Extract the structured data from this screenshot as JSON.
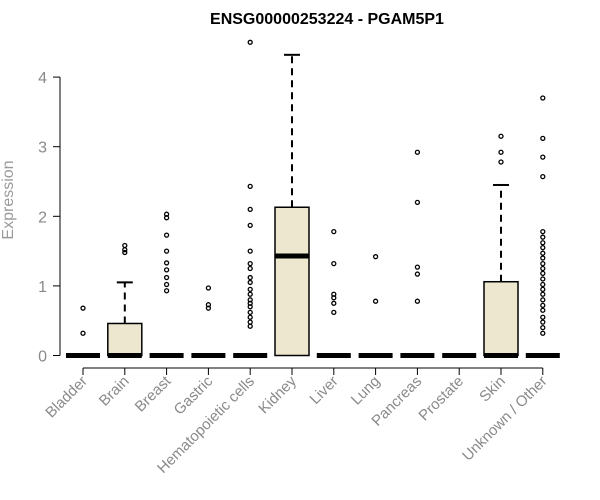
{
  "chart_data": {
    "type": "box",
    "title": "ENSG00000253224 - PGAM5P1",
    "ylabel": "Expression",
    "xlabel": "",
    "ylim": [
      0,
      4.4
    ],
    "yticks": [
      0,
      1,
      2,
      3,
      4
    ],
    "box_fill": "#ede7cf",
    "categories": [
      "Bladder",
      "Brain",
      "Breast",
      "Gastric",
      "Hematopoietic cells",
      "Kidney",
      "Liver",
      "Lung",
      "Pancreas",
      "Prostate",
      "Skin",
      "Unknown / Other"
    ],
    "boxes": [
      {
        "category": "Bladder",
        "q1": 0,
        "median": 0,
        "q3": 0,
        "whisker_low": 0,
        "whisker_high": 0,
        "outliers": [
          0.68,
          0.32
        ]
      },
      {
        "category": "Brain",
        "q1": 0,
        "median": 0,
        "q3": 0.46,
        "whisker_low": 0,
        "whisker_high": 1.05,
        "outliers": [
          1.48,
          1.52,
          1.58
        ]
      },
      {
        "category": "Breast",
        "q1": 0,
        "median": 0,
        "q3": 0,
        "whisker_low": 0,
        "whisker_high": 0,
        "outliers": [
          2.03,
          1.98,
          1.73,
          1.5,
          1.33,
          1.23,
          1.12,
          1.02,
          0.93
        ]
      },
      {
        "category": "Gastric",
        "q1": 0,
        "median": 0,
        "q3": 0,
        "whisker_low": 0,
        "whisker_high": 0,
        "outliers": [
          0.97,
          0.73,
          0.68
        ]
      },
      {
        "category": "Hematopoietic cells",
        "q1": 0,
        "median": 0,
        "q3": 0,
        "whisker_low": 0,
        "whisker_high": 0,
        "outliers": [
          4.5,
          2.43,
          2.1,
          1.87,
          1.5,
          1.32,
          1.25,
          1.12,
          1.05,
          0.95,
          0.88,
          0.8,
          0.75,
          0.7,
          0.62,
          0.55,
          0.48,
          0.42
        ]
      },
      {
        "category": "Kidney",
        "q1": 0,
        "median": 1.43,
        "q3": 2.13,
        "whisker_low": 0,
        "whisker_high": 4.32,
        "outliers": []
      },
      {
        "category": "Liver",
        "q1": 0,
        "median": 0,
        "q3": 0,
        "whisker_low": 0,
        "whisker_high": 0,
        "outliers": [
          1.78,
          1.32,
          0.88,
          0.83,
          0.75,
          0.62
        ]
      },
      {
        "category": "Lung",
        "q1": 0,
        "median": 0,
        "q3": 0,
        "whisker_low": 0,
        "whisker_high": 0,
        "outliers": [
          1.42,
          0.78
        ]
      },
      {
        "category": "Pancreas",
        "q1": 0,
        "median": 0,
        "q3": 0,
        "whisker_low": 0,
        "whisker_high": 0,
        "outliers": [
          2.92,
          2.2,
          1.27,
          1.17,
          0.78
        ]
      },
      {
        "category": "Prostate",
        "q1": 0,
        "median": 0,
        "q3": 0,
        "whisker_low": 0,
        "whisker_high": 0,
        "outliers": []
      },
      {
        "category": "Skin",
        "q1": 0,
        "median": 0,
        "q3": 1.06,
        "whisker_low": 0,
        "whisker_high": 2.45,
        "outliers": [
          3.15,
          2.92,
          2.78
        ]
      },
      {
        "category": "Unknown / Other",
        "q1": 0,
        "median": 0,
        "q3": 0,
        "whisker_low": 0,
        "whisker_high": 0,
        "outliers": [
          3.7,
          3.12,
          2.85,
          2.57,
          1.78,
          1.7,
          1.62,
          1.55,
          1.47,
          1.4,
          1.32,
          1.25,
          1.18,
          1.1,
          1.02,
          0.95,
          0.88,
          0.8,
          0.72,
          0.65,
          0.55,
          0.48,
          0.4,
          0.32
        ]
      }
    ]
  }
}
